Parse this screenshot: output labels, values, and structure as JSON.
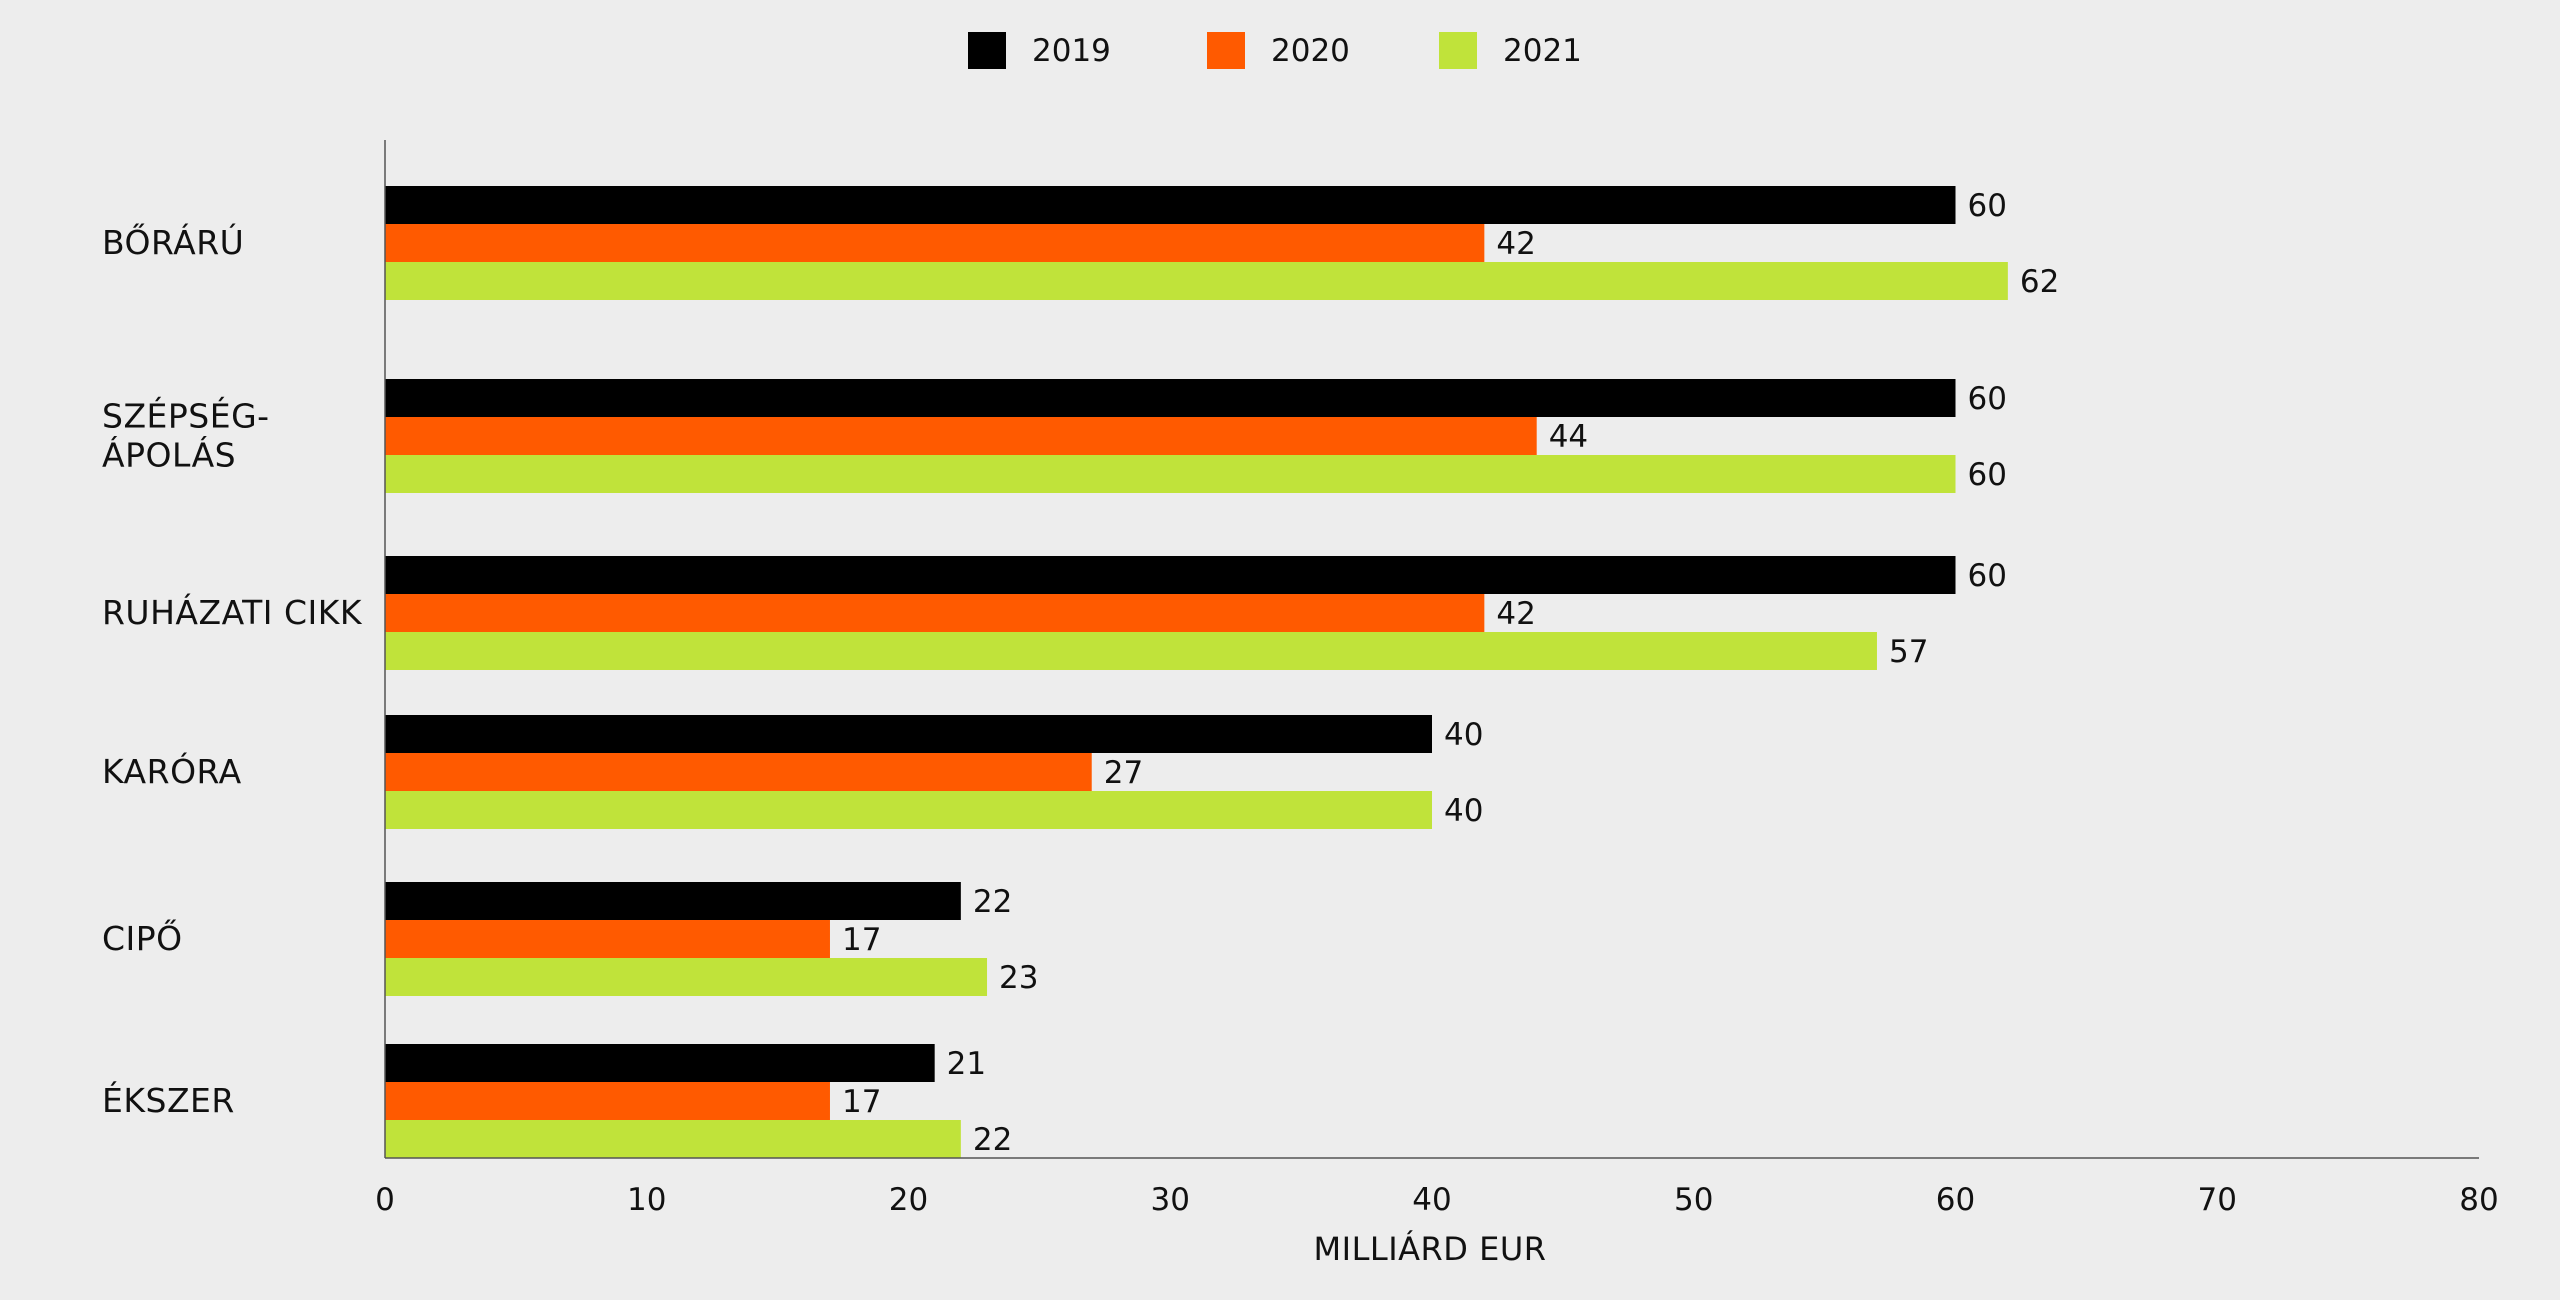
{
  "chart_data": {
    "type": "bar",
    "orientation": "horizontal",
    "categories": [
      [
        "BŐRÁRÚ"
      ],
      [
        "SZÉPSÉG-",
        "ÁPOLÁS"
      ],
      [
        "RUHÁZATI CIKK"
      ],
      [
        "KARÓRA"
      ],
      [
        "CIPŐ"
      ],
      [
        "ÉKSZER"
      ]
    ],
    "series": [
      {
        "name": "2019",
        "color": "#000000",
        "values": [
          60,
          60,
          60,
          40,
          22,
          21
        ]
      },
      {
        "name": "2020",
        "color": "#ff5a00",
        "values": [
          42,
          44,
          42,
          27,
          17,
          17
        ]
      },
      {
        "name": "2021",
        "color": "#c0e33a",
        "values": [
          62,
          60,
          57,
          40,
          23,
          22
        ]
      }
    ],
    "data_labels": [
      [
        60,
        60,
        60,
        40,
        22,
        21
      ],
      [
        42,
        44,
        42,
        27,
        17,
        17
      ],
      [
        62,
        60,
        57,
        40,
        23,
        22
      ]
    ],
    "xlabel": "MILLIÁRD EUR",
    "ylabel": "",
    "xlim": [
      0,
      80
    ],
    "xticks": [
      0,
      10,
      20,
      30,
      40,
      50,
      60,
      70,
      80
    ],
    "grid": false,
    "legend": "top-center"
  }
}
